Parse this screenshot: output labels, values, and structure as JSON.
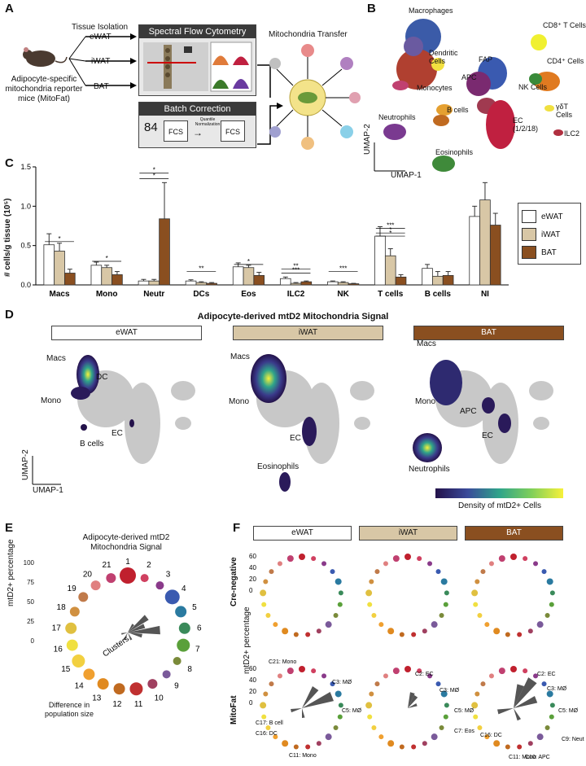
{
  "panels": {
    "a": "A",
    "b": "B",
    "c": "C",
    "d": "D",
    "e": "E",
    "f": "F"
  },
  "panel_a": {
    "tissue_isolation": "Tissue Isolation",
    "depots": [
      "eWAT",
      "iWAT",
      "BAT"
    ],
    "mouse_caption": [
      "Adipocyte-specific",
      "mitochondria reporter",
      "mice (MitoFat)"
    ],
    "flow_title": "Spectral Flow Cytometry",
    "batch_title": "Batch Correction",
    "batch_count": "84",
    "fcs": "FCS",
    "quantile": "Quantile Normalization",
    "transfer_title": "Mitochondria Transfer"
  },
  "panel_b": {
    "axis_x": "UMAP-1",
    "axis_y": "UMAP-2",
    "clusters": [
      {
        "label": "Macrophages"
      },
      {
        "label": "Dendritic Cells"
      },
      {
        "label": "Monocytes"
      },
      {
        "label": "FAP"
      },
      {
        "label": "APC"
      },
      {
        "label": "B cells"
      },
      {
        "label": "Neutrophils"
      },
      {
        "label": "EC (1/2/18)"
      },
      {
        "label": "Eosinophils"
      },
      {
        "label": "CD8⁺ T Cells"
      },
      {
        "label": "CD4⁺ Cells"
      },
      {
        "label": "NK Cells"
      },
      {
        "label": "γδT Cells"
      },
      {
        "label": "ILC2"
      }
    ],
    "numbers": [
      "5",
      "3",
      "11",
      "16",
      "21",
      "4",
      "10",
      "15",
      "17",
      "12",
      "9",
      "2",
      "1",
      "7",
      "8",
      "13",
      "6",
      "14",
      "20",
      "19",
      "15"
    ]
  },
  "chart_data": {
    "type": "bar",
    "ylabel": "# cells/g tissue (10⁵)",
    "ylim": [
      0,
      1.5
    ],
    "yticks": [
      "0.0",
      "0.5",
      "1.0",
      "1.5"
    ],
    "categories": [
      "Macs",
      "Mono",
      "Neutr",
      "DCs",
      "Eos",
      "ILC2",
      "NK",
      "T cells",
      "B cells",
      "NI"
    ],
    "series": [
      {
        "name": "eWAT",
        "color": "#ffffff",
        "values": [
          0.51,
          0.25,
          0.05,
          0.05,
          0.23,
          0.08,
          0.04,
          0.62,
          0.21,
          0.87
        ],
        "errors": [
          0.14,
          0.04,
          0.02,
          0.015,
          0.05,
          0.02,
          0.01,
          0.12,
          0.05,
          0.13
        ]
      },
      {
        "name": "iWAT",
        "color": "#d8c7a6",
        "values": [
          0.43,
          0.22,
          0.05,
          0.03,
          0.22,
          0.02,
          0.03,
          0.37,
          0.11,
          1.08
        ],
        "errors": [
          0.1,
          0.03,
          0.02,
          0.01,
          0.03,
          0.01,
          0.01,
          0.09,
          0.06,
          0.22
        ]
      },
      {
        "name": "BAT",
        "color": "#8a4f20",
        "values": [
          0.15,
          0.13,
          0.84,
          0.02,
          0.12,
          0.04,
          0.015,
          0.1,
          0.12,
          0.76
        ],
        "errors": [
          0.05,
          0.04,
          0.46,
          0.01,
          0.04,
          0.01,
          0.005,
          0.03,
          0.05,
          0.15
        ]
      }
    ],
    "significance": [
      "*",
      "*",
      "*",
      "*",
      "**",
      "*",
      "**",
      "***",
      "***",
      "*",
      "*",
      "***"
    ],
    "legend_position": "right"
  },
  "panel_d": {
    "title": "Adipocyte-derived mtD2 Mitochondria Signal",
    "depots": [
      "eWAT",
      "iWAT",
      "BAT"
    ],
    "labels_ewat": [
      "Macs",
      "DC",
      "Mono",
      "EC",
      "B cells"
    ],
    "labels_iwat": [
      "Macs",
      "Mono",
      "EC",
      "Eosinophils"
    ],
    "labels_bat": [
      "Macs",
      "Mono",
      "APC",
      "EC",
      "Neutrophils"
    ],
    "axis_x": "UMAP-1",
    "axis_y": "UMAP-2",
    "colorbar_label": "Density of mtD2+ Cells"
  },
  "panel_e": {
    "title": [
      "Adipocyte-derived mtD2",
      "Mitochondria Signal"
    ],
    "ylabel": "mtD2+ percentage",
    "yticks": [
      "100",
      "75",
      "50",
      "25",
      "0"
    ],
    "cluster_numbers": [
      "1",
      "2",
      "3",
      "4",
      "5",
      "6",
      "7",
      "8",
      "9",
      "10",
      "11",
      "12",
      "13",
      "14",
      "15",
      "16",
      "17",
      "18",
      "19",
      "20",
      "21"
    ],
    "clusters_label": "Clusters",
    "difference_note": [
      "Difference in",
      "population size"
    ]
  },
  "panel_f": {
    "depots": [
      "eWAT",
      "iWAT",
      "BAT"
    ],
    "row_labels": [
      "Cre-negative",
      "MitoFat"
    ],
    "ylabel": "mtD2+ percentage",
    "yticks": [
      "60",
      "40",
      "20",
      "0"
    ],
    "ewat_labels": [
      "C21: Mono",
      "C3: MØ",
      "C5: MØ",
      "C17: B cell",
      "C16: DC",
      "C11: Mono"
    ],
    "iwat_labels": [
      "C2: EC",
      "C3: MØ",
      "C5: MØ",
      "C7: Eos"
    ],
    "bat_labels": [
      "C2: EC",
      "C3: MØ",
      "C5: MØ",
      "C16: DC",
      "C9: Neut",
      "C10: APC",
      "C11: Mono"
    ]
  },
  "colors": {
    "dark_box": "#3a3a3a",
    "ewat": "#ffffff",
    "iwat": "#d8c7a6",
    "bat": "#8a4f20",
    "bat_bar": "#8a4f20"
  }
}
